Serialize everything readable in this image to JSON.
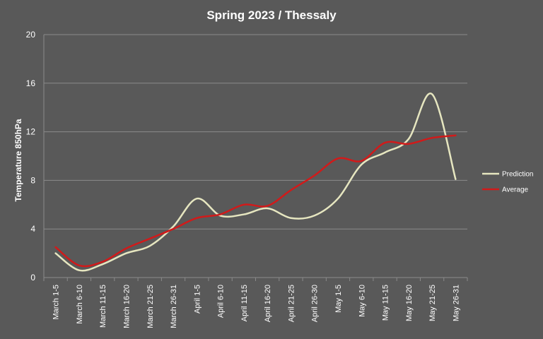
{
  "chart_data": {
    "type": "line",
    "title": "Spring 2023 / Thessaly",
    "xlabel": "",
    "ylabel": "Temperature 850hPa",
    "ylim": [
      0,
      20
    ],
    "yticks": [
      "0",
      "4",
      "8",
      "12",
      "16",
      "20"
    ],
    "grid": true,
    "legend_position": "right",
    "categories": [
      "March 1-5",
      "March 6-10",
      "March 11-15",
      "March 16-20",
      "March 21-25",
      "March 26-31",
      "April 1-5",
      "April 6-10",
      "April 11-15",
      "April 16-20",
      "April 21-25",
      "April 26-30",
      "May 1-5",
      "May 6-10",
      "May 11-15",
      "May 16-20",
      "May 21-25",
      "May 26-31"
    ],
    "series": [
      {
        "name": "Prediction",
        "color": "#e6e6c0",
        "values": [
          2.0,
          0.6,
          1.1,
          2.0,
          2.6,
          4.2,
          6.5,
          5.1,
          5.2,
          5.7,
          4.9,
          5.1,
          6.5,
          9.3,
          10.3,
          11.4,
          15.1,
          8.1
        ]
      },
      {
        "name": "Average",
        "color": "#d11a1a",
        "values": [
          2.5,
          1.0,
          1.3,
          2.4,
          3.2,
          4.0,
          4.9,
          5.2,
          6.0,
          5.9,
          7.2,
          8.4,
          9.8,
          9.6,
          11.1,
          11.0,
          11.5,
          11.7
        ]
      }
    ]
  }
}
